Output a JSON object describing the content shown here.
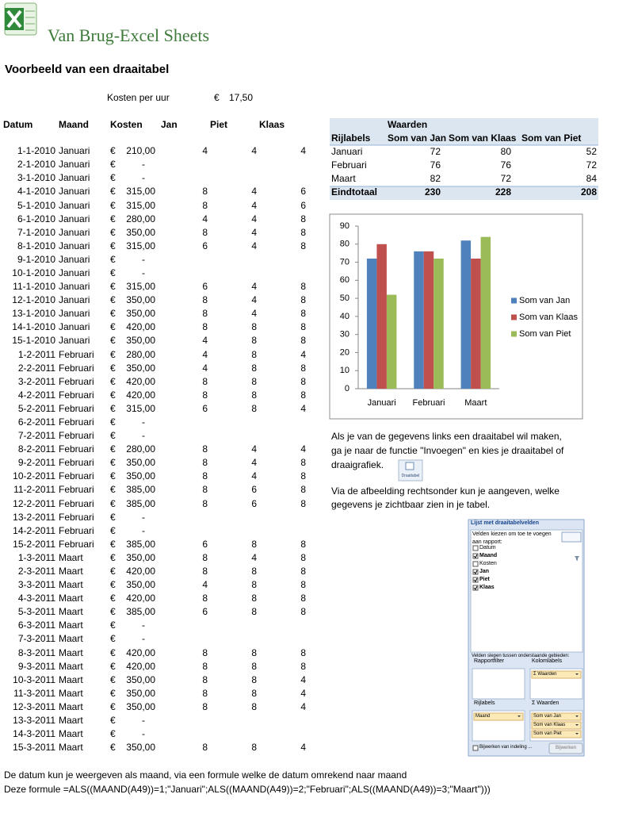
{
  "header": {
    "logo": "Van Brug-Excel Sheets",
    "title": "Voorbeeld van een draaitabel"
  },
  "rate": {
    "label": "Kosten per uur",
    "currency": "€",
    "value": "17,50"
  },
  "table": {
    "columns": [
      "Datum",
      "Maand",
      "Kosten",
      "Jan",
      "Piet",
      "Klaas"
    ],
    "rows": [
      {
        "date": "1-1-2010",
        "month": "Januari",
        "currency": "€",
        "cost": "210,00",
        "jan": 4,
        "piet": 4,
        "klaas": 4
      },
      {
        "date": "2-1-2010",
        "month": "Januari",
        "currency": "€",
        "cost": "-"
      },
      {
        "date": "3-1-2010",
        "month": "Januari",
        "currency": "€",
        "cost": "-"
      },
      {
        "date": "4-1-2010",
        "month": "Januari",
        "currency": "€",
        "cost": "315,00",
        "jan": 8,
        "piet": 4,
        "klaas": 6
      },
      {
        "date": "5-1-2010",
        "month": "Januari",
        "currency": "€",
        "cost": "315,00",
        "jan": 8,
        "piet": 4,
        "klaas": 6
      },
      {
        "date": "6-1-2010",
        "month": "Januari",
        "currency": "€",
        "cost": "280,00",
        "jan": 4,
        "piet": 4,
        "klaas": 8
      },
      {
        "date": "7-1-2010",
        "month": "Januari",
        "currency": "€",
        "cost": "350,00",
        "jan": 8,
        "piet": 4,
        "klaas": 8
      },
      {
        "date": "8-1-2010",
        "month": "Januari",
        "currency": "€",
        "cost": "315,00",
        "jan": 6,
        "piet": 4,
        "klaas": 8
      },
      {
        "date": "9-1-2010",
        "month": "Januari",
        "currency": "€",
        "cost": "-"
      },
      {
        "date": "10-1-2010",
        "month": "Januari",
        "currency": "€",
        "cost": "-"
      },
      {
        "date": "11-1-2010",
        "month": "Januari",
        "currency": "€",
        "cost": "315,00",
        "jan": 6,
        "piet": 4,
        "klaas": 8
      },
      {
        "date": "12-1-2010",
        "month": "Januari",
        "currency": "€",
        "cost": "350,00",
        "jan": 8,
        "piet": 4,
        "klaas": 8
      },
      {
        "date": "13-1-2010",
        "month": "Januari",
        "currency": "€",
        "cost": "350,00",
        "jan": 8,
        "piet": 4,
        "klaas": 8
      },
      {
        "date": "14-1-2010",
        "month": "Januari",
        "currency": "€",
        "cost": "420,00",
        "jan": 8,
        "piet": 8,
        "klaas": 8
      },
      {
        "date": "15-1-2010",
        "month": "Januari",
        "currency": "€",
        "cost": "350,00",
        "jan": 4,
        "piet": 8,
        "klaas": 8
      },
      {
        "date": "1-2-2011",
        "month": "Februari",
        "currency": "€",
        "cost": "280,00",
        "jan": 4,
        "piet": 8,
        "klaas": 4
      },
      {
        "date": "2-2-2011",
        "month": "Februari",
        "currency": "€",
        "cost": "350,00",
        "jan": 4,
        "piet": 8,
        "klaas": 8
      },
      {
        "date": "3-2-2011",
        "month": "Februari",
        "currency": "€",
        "cost": "420,00",
        "jan": 8,
        "piet": 8,
        "klaas": 8
      },
      {
        "date": "4-2-2011",
        "month": "Februari",
        "currency": "€",
        "cost": "420,00",
        "jan": 8,
        "piet": 8,
        "klaas": 8
      },
      {
        "date": "5-2-2011",
        "month": "Februari",
        "currency": "€",
        "cost": "315,00",
        "jan": 6,
        "piet": 8,
        "klaas": 4
      },
      {
        "date": "6-2-2011",
        "month": "Februari",
        "currency": "€",
        "cost": "-"
      },
      {
        "date": "7-2-2011",
        "month": "Februari",
        "currency": "€",
        "cost": "-"
      },
      {
        "date": "8-2-2011",
        "month": "Februari",
        "currency": "€",
        "cost": "280,00",
        "jan": 8,
        "piet": 4,
        "klaas": 4
      },
      {
        "date": "9-2-2011",
        "month": "Februari",
        "currency": "€",
        "cost": "350,00",
        "jan": 8,
        "piet": 4,
        "klaas": 8
      },
      {
        "date": "10-2-2011",
        "month": "Februari",
        "currency": "€",
        "cost": "350,00",
        "jan": 8,
        "piet": 4,
        "klaas": 8
      },
      {
        "date": "11-2-2011",
        "month": "Februari",
        "currency": "€",
        "cost": "385,00",
        "jan": 8,
        "piet": 6,
        "klaas": 8
      },
      {
        "date": "12-2-2011",
        "month": "Februari",
        "currency": "€",
        "cost": "385,00",
        "jan": 8,
        "piet": 6,
        "klaas": 8
      },
      {
        "date": "13-2-2011",
        "month": "Februari",
        "currency": "€",
        "cost": "-"
      },
      {
        "date": "14-2-2011",
        "month": "Februari",
        "currency": "€",
        "cost": "-"
      },
      {
        "date": "15-2-2011",
        "month": "Februari",
        "currency": "€",
        "cost": "385,00",
        "jan": 6,
        "piet": 8,
        "klaas": 8
      },
      {
        "date": "1-3-2011",
        "month": "Maart",
        "currency": "€",
        "cost": "350,00",
        "jan": 8,
        "piet": 4,
        "klaas": 8
      },
      {
        "date": "2-3-2011",
        "month": "Maart",
        "currency": "€",
        "cost": "420,00",
        "jan": 8,
        "piet": 8,
        "klaas": 8
      },
      {
        "date": "3-3-2011",
        "month": "Maart",
        "currency": "€",
        "cost": "350,00",
        "jan": 4,
        "piet": 8,
        "klaas": 8
      },
      {
        "date": "4-3-2011",
        "month": "Maart",
        "currency": "€",
        "cost": "420,00",
        "jan": 8,
        "piet": 8,
        "klaas": 8
      },
      {
        "date": "5-3-2011",
        "month": "Maart",
        "currency": "€",
        "cost": "385,00",
        "jan": 6,
        "piet": 8,
        "klaas": 8
      },
      {
        "date": "6-3-2011",
        "month": "Maart",
        "currency": "€",
        "cost": "-"
      },
      {
        "date": "7-3-2011",
        "month": "Maart",
        "currency": "€",
        "cost": "-"
      },
      {
        "date": "8-3-2011",
        "month": "Maart",
        "currency": "€",
        "cost": "420,00",
        "jan": 8,
        "piet": 8,
        "klaas": 8
      },
      {
        "date": "9-3-2011",
        "month": "Maart",
        "currency": "€",
        "cost": "420,00",
        "jan": 8,
        "piet": 8,
        "klaas": 8
      },
      {
        "date": "10-3-2011",
        "month": "Maart",
        "currency": "€",
        "cost": "350,00",
        "jan": 8,
        "piet": 8,
        "klaas": 4
      },
      {
        "date": "11-3-2011",
        "month": "Maart",
        "currency": "€",
        "cost": "350,00",
        "jan": 8,
        "piet": 8,
        "klaas": 4
      },
      {
        "date": "12-3-2011",
        "month": "Maart",
        "currency": "€",
        "cost": "350,00",
        "jan": 8,
        "piet": 8,
        "klaas": 4
      },
      {
        "date": "13-3-2011",
        "month": "Maart",
        "currency": "€",
        "cost": "-"
      },
      {
        "date": "14-3-2011",
        "month": "Maart",
        "currency": "€",
        "cost": "-"
      },
      {
        "date": "15-3-2011",
        "month": "Maart",
        "currency": "€",
        "cost": "350,00",
        "jan": 8,
        "piet": 8,
        "klaas": 4
      }
    ]
  },
  "pivot": {
    "values_header": "Waarden",
    "columns": [
      "Rijlabels",
      "Som van Jan",
      "Som van Klaas",
      "Som van Piet"
    ],
    "rows": [
      [
        "Januari",
        72,
        80,
        52
      ],
      [
        "Februari",
        76,
        76,
        72
      ],
      [
        "Maart",
        82,
        72,
        84
      ]
    ],
    "total": [
      "Eindtotaal",
      230,
      228,
      208
    ]
  },
  "chart_data": {
    "type": "bar",
    "categories": [
      "Januari",
      "Februari",
      "Maart"
    ],
    "series": [
      {
        "name": "Som van Jan",
        "color": "#4f81bd",
        "values": [
          72,
          76,
          82
        ]
      },
      {
        "name": "Som van Klaas",
        "color": "#c0504d",
        "values": [
          80,
          76,
          72
        ]
      },
      {
        "name": "Som van Piet",
        "color": "#9bbb59",
        "values": [
          52,
          72,
          84
        ]
      }
    ],
    "ylim": [
      0,
      90
    ],
    "yticks": [
      0,
      10,
      20,
      30,
      40,
      50,
      60,
      70,
      80,
      90
    ],
    "grid": false,
    "legend": "right"
  },
  "instructions": {
    "paragraph1": [
      "Als je van de gegevens links een draaitabel wil maken,",
      "ga je naar de functie \"Invoegen\" en kies je draaitabel of",
      "draaigrafiek."
    ],
    "icon_label": "Draaitabel",
    "paragraph2": [
      "Via de afbeelding rechtsonder kun je aangeven, welke",
      "gegevens je zichtbaar zien in je tabel."
    ]
  },
  "field_list": {
    "title": "Lijst met draaitabelvelden",
    "choose": "Velden kiezen om toe te voegen aan rapport:",
    "fields": [
      {
        "name": "Datum",
        "checked": false
      },
      {
        "name": "Maand",
        "checked": true
      },
      {
        "name": "Kosten",
        "checked": false
      },
      {
        "name": "Jan",
        "checked": true
      },
      {
        "name": "Piet",
        "checked": true
      },
      {
        "name": "Klaas",
        "checked": true
      }
    ],
    "drag": "Velden slepen tussen onderstaande gebieden:",
    "report_filter": "Rapportfilter",
    "column_labels": "Kolomlabels",
    "column_items": [
      "Σ Waarden"
    ],
    "row_labels": "Rijlabels",
    "row_items": [
      "Maand"
    ],
    "values": "Σ Waarden",
    "value_items": [
      "Som van Jan",
      "Som van Klaas",
      "Som van Piet"
    ],
    "defer": "Bijwerken van indeling ...",
    "update": "Bijwerken"
  },
  "footer": [
    "De datum kun je weergeven als maand, via een formule welke de datum omrekend naar maand",
    "Deze formule  =ALS((MAAND(A49))=1;\"Januari\";ALS((MAAND(A49))=2;\"Februari\";ALS((MAAND(A49))=3;\"Maart\")))"
  ]
}
